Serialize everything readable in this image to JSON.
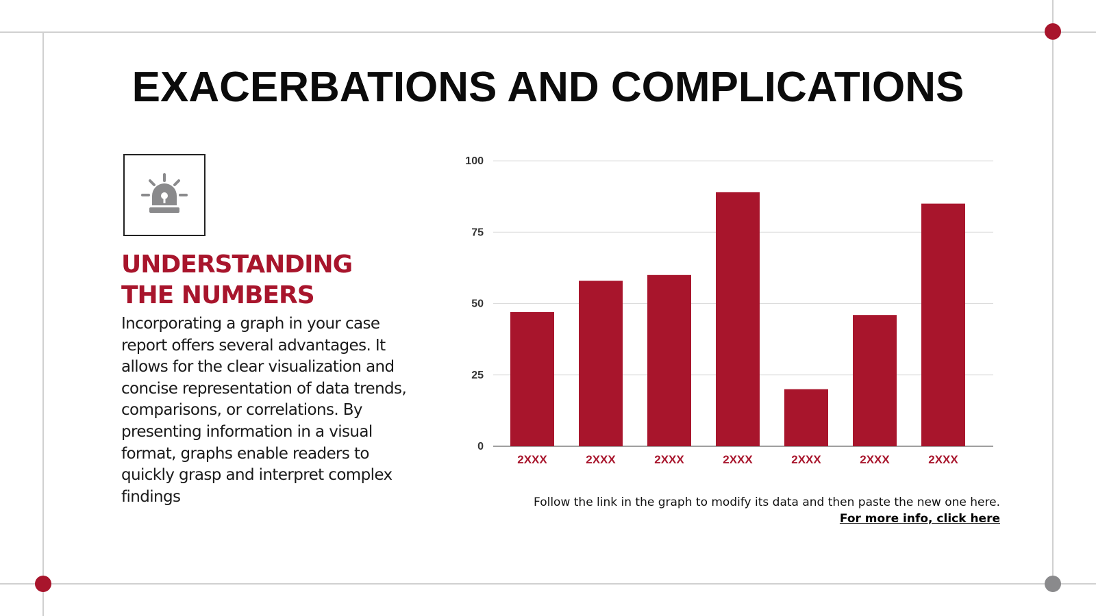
{
  "slide": {
    "title": "EXACERBATIONS AND COMPLICATIONS"
  },
  "colors": {
    "accent": "#a8152c",
    "grey": "#8a8a8c",
    "text": "#111111"
  },
  "icon": {
    "name": "alarm-siren-icon"
  },
  "section": {
    "heading_line1": "UNDERSTANDING",
    "heading_line2": "THE NUMBERS",
    "body": "Incorporating a graph in your case report offers several advantages. It allows for the clear visualization and concise representation of data trends, comparisons, or correlations. By presenting information in a visual format, graphs enable readers to quickly grasp and interpret complex findings"
  },
  "footnote": {
    "instruction": "Follow the link in the graph to modify its data and then paste the new one here.",
    "link": "For more info, click here"
  },
  "chart_data": {
    "type": "bar",
    "title": "",
    "xlabel": "",
    "ylabel": "",
    "categories": [
      "2XXX",
      "2XXX",
      "2XXX",
      "2XXX",
      "2XXX",
      "2XXX",
      "2XXX"
    ],
    "values": [
      47,
      58,
      60,
      89,
      20,
      46,
      85
    ],
    "ylim": [
      0,
      100
    ],
    "yticks": [
      0,
      25,
      50,
      75,
      100
    ],
    "grid": true,
    "legend": "none"
  }
}
